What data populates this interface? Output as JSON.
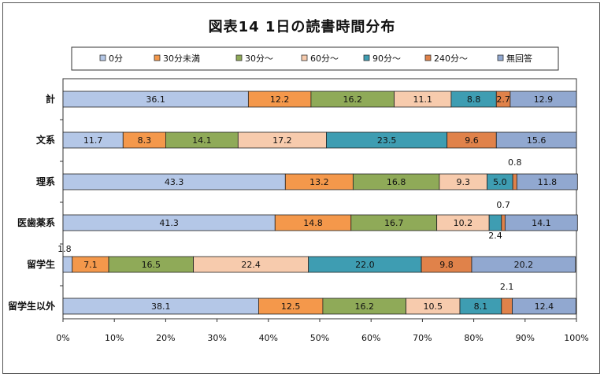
{
  "chart_data": {
    "type": "bar",
    "stacked": "100%",
    "orientation": "horizontal",
    "title": "図表14 1日の読書時間分布",
    "categories": [
      "計",
      "文系",
      "理系",
      "医歯薬系",
      "留学生",
      "留学生以外"
    ],
    "series": [
      {
        "name": "0分",
        "color": "#b4c7e7",
        "values": [
          36.1,
          11.7,
          43.3,
          41.3,
          1.8,
          38.1
        ]
      },
      {
        "name": "30分未満",
        "color": "#f4984b",
        "values": [
          12.2,
          8.3,
          13.2,
          14.8,
          7.1,
          12.5
        ]
      },
      {
        "name": "30分～",
        "color": "#8faa58",
        "values": [
          16.2,
          14.1,
          16.8,
          16.7,
          16.5,
          16.2
        ]
      },
      {
        "name": "60分～",
        "color": "#f7cbad",
        "values": [
          11.1,
          17.2,
          9.3,
          10.2,
          22.4,
          10.5
        ]
      },
      {
        "name": "90分～",
        "color": "#3e9db2",
        "values": [
          8.8,
          23.5,
          5.0,
          2.4,
          22.0,
          8.1
        ]
      },
      {
        "name": "240分～",
        "color": "#e0824a",
        "values": [
          2.7,
          9.6,
          0.8,
          0.7,
          9.8,
          2.1
        ]
      },
      {
        "name": "無回答",
        "color": "#91a8d0",
        "values": [
          12.9,
          15.6,
          11.8,
          14.1,
          20.2,
          12.4
        ]
      }
    ],
    "data_labels": [
      [
        "36.1",
        "12.2",
        "16.2",
        "11.1",
        "8.8",
        "2.7",
        "12.9"
      ],
      [
        "11.7",
        "8.3",
        "14.1",
        "17.2",
        "23.5",
        "9.6",
        "15.6"
      ],
      [
        "43.3",
        "13.2",
        "16.8",
        "9.3",
        "5.0",
        "0.8",
        "11.8"
      ],
      [
        "41.3",
        "14.8",
        "16.7",
        "10.2",
        "2.4",
        "0.7",
        "14.1"
      ],
      [
        "1.8",
        "7.1",
        "16.5",
        "22.4",
        "22.0",
        "9.8",
        "20.2"
      ],
      [
        "38.1",
        "12.5",
        "16.2",
        "10.5",
        "8.1",
        "2.1",
        "12.4"
      ]
    ],
    "xlim": [
      0,
      100
    ],
    "x_ticks": [
      "0%",
      "10%",
      "20%",
      "30%",
      "40%",
      "50%",
      "60%",
      "70%",
      "80%",
      "90%",
      "100%"
    ],
    "legend_position": "top",
    "grid": false
  }
}
